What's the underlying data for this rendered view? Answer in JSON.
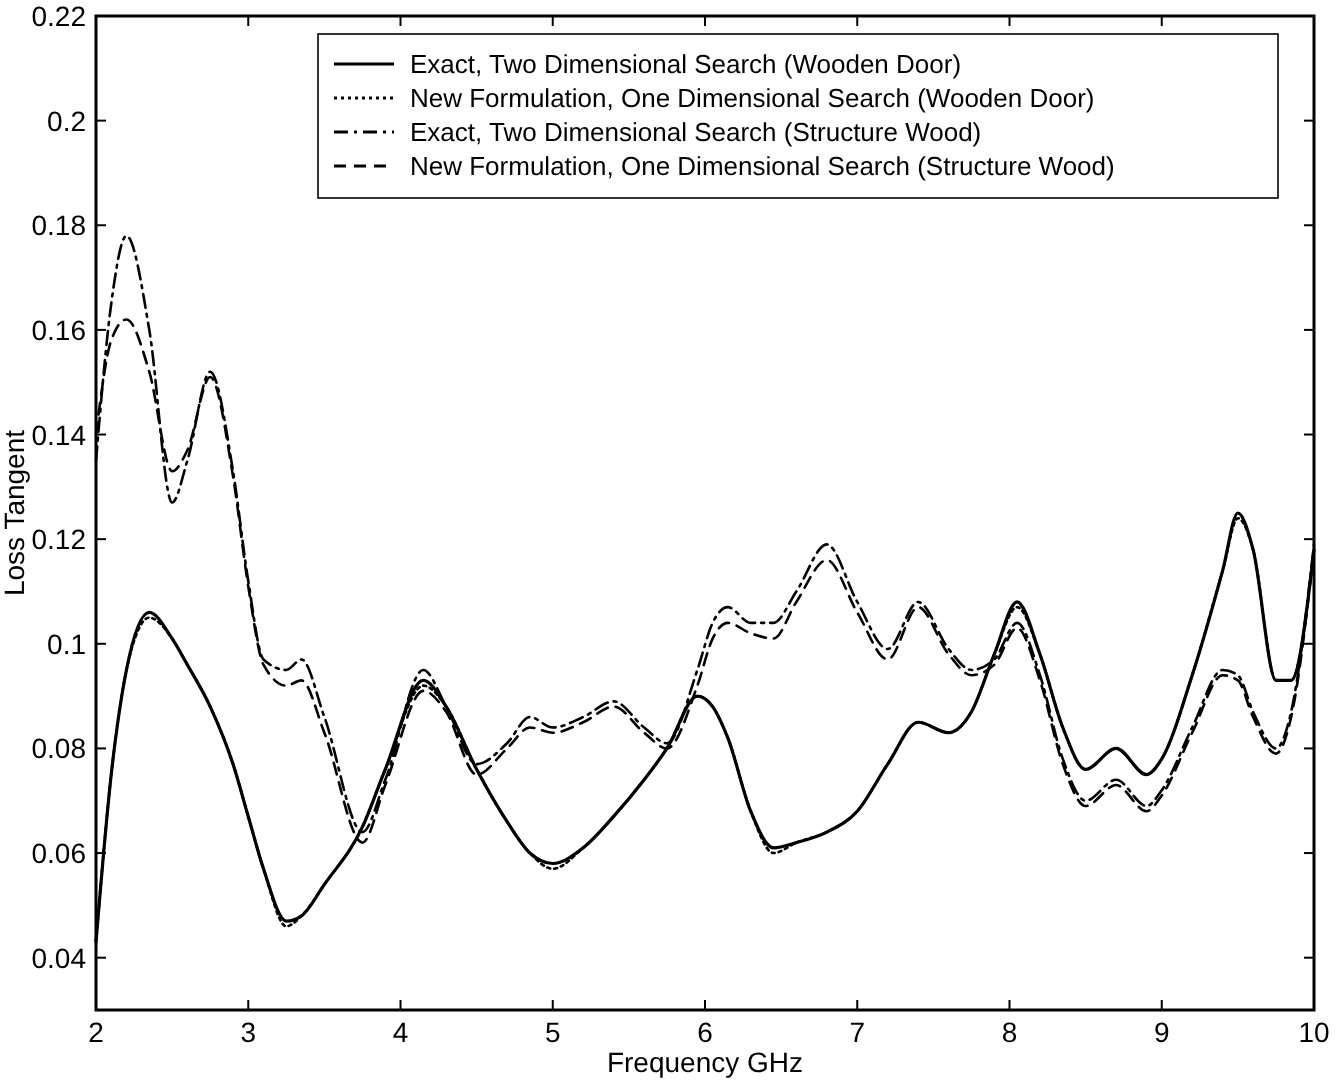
{
  "chart_data": {
    "type": "line",
    "xlabel": "Frequency GHz",
    "ylabel": "Loss Tangent",
    "x": [
      2,
      2.1,
      2.2,
      2.35,
      2.5,
      2.6,
      2.75,
      2.9,
      3.0,
      3.1,
      3.25,
      3.35,
      3.5,
      3.75,
      3.9,
      4.15,
      4.3,
      4.5,
      4.7,
      4.85,
      5.0,
      5.2,
      5.4,
      5.6,
      5.75,
      5.95,
      6.05,
      6.15,
      6.3,
      6.45,
      6.6,
      6.8,
      7.0,
      7.2,
      7.4,
      7.6,
      7.75,
      7.9,
      8.05,
      8.2,
      8.35,
      8.5,
      8.7,
      8.9,
      9.0,
      9.2,
      9.4,
      9.5,
      9.6,
      9.75,
      9.85,
      10
    ],
    "series": [
      {
        "name": "Exact, Two Dimensional Search (Wooden Door)",
        "color": "#000000",
        "line_style": "solid",
        "values": [
          0.043,
          0.075,
          0.095,
          0.106,
          0.101,
          0.096,
          0.088,
          0.077,
          0.067,
          0.057,
          0.047,
          0.048,
          0.054,
          0.065,
          0.076,
          0.093,
          0.088,
          0.076,
          0.066,
          0.06,
          0.058,
          0.061,
          0.067,
          0.074,
          0.08,
          0.09,
          0.088,
          0.082,
          0.068,
          0.061,
          0.062,
          0.064,
          0.068,
          0.077,
          0.085,
          0.083,
          0.087,
          0.098,
          0.108,
          0.098,
          0.084,
          0.076,
          0.08,
          0.075,
          0.078,
          0.094,
          0.114,
          0.125,
          0.118,
          0.093,
          0.093,
          0.118
        ]
      },
      {
        "name": "New Formulation, One Dimensional Search (Wooden Door)",
        "color": "#000000",
        "line_style": "dotted",
        "values": [
          0.043,
          0.075,
          0.095,
          0.105,
          0.101,
          0.096,
          0.088,
          0.077,
          0.067,
          0.057,
          0.046,
          0.048,
          0.054,
          0.065,
          0.076,
          0.092,
          0.088,
          0.076,
          0.066,
          0.06,
          0.057,
          0.061,
          0.067,
          0.074,
          0.08,
          0.09,
          0.088,
          0.082,
          0.068,
          0.06,
          0.062,
          0.064,
          0.068,
          0.077,
          0.085,
          0.083,
          0.087,
          0.098,
          0.107,
          0.098,
          0.084,
          0.076,
          0.08,
          0.075,
          0.078,
          0.094,
          0.114,
          0.124,
          0.118,
          0.093,
          0.093,
          0.118
        ]
      },
      {
        "name": "Exact, Two Dimensional Search (Structure Wood)",
        "color": "#000000",
        "line_style": "dashdot",
        "values": [
          0.135,
          0.165,
          0.178,
          0.16,
          0.127,
          0.135,
          0.152,
          0.133,
          0.112,
          0.097,
          0.095,
          0.097,
          0.086,
          0.064,
          0.074,
          0.095,
          0.088,
          0.077,
          0.081,
          0.086,
          0.084,
          0.086,
          0.089,
          0.084,
          0.081,
          0.095,
          0.104,
          0.107,
          0.104,
          0.104,
          0.11,
          0.119,
          0.108,
          0.099,
          0.108,
          0.099,
          0.095,
          0.097,
          0.104,
          0.094,
          0.078,
          0.07,
          0.074,
          0.069,
          0.072,
          0.084,
          0.095,
          0.094,
          0.087,
          0.08,
          0.087,
          0.119
        ]
      },
      {
        "name": "New Formulation, One Dimensional Search (Structure Wood)",
        "color": "#000000",
        "line_style": "dashed",
        "values": [
          0.14,
          0.158,
          0.162,
          0.152,
          0.133,
          0.137,
          0.151,
          0.132,
          0.111,
          0.096,
          0.092,
          0.093,
          0.083,
          0.062,
          0.073,
          0.091,
          0.087,
          0.075,
          0.08,
          0.084,
          0.083,
          0.085,
          0.088,
          0.083,
          0.08,
          0.092,
          0.101,
          0.104,
          0.102,
          0.101,
          0.108,
          0.116,
          0.106,
          0.097,
          0.107,
          0.098,
          0.094,
          0.096,
          0.103,
          0.093,
          0.077,
          0.069,
          0.073,
          0.068,
          0.071,
          0.083,
          0.094,
          0.093,
          0.086,
          0.079,
          0.086,
          0.118
        ]
      }
    ],
    "xlim": [
      2,
      10
    ],
    "xticks": [
      2,
      3,
      4,
      5,
      6,
      7,
      8,
      9,
      10
    ],
    "ylim": [
      0.03,
      0.22
    ],
    "yticks": [
      0.04,
      0.06,
      0.08,
      0.1,
      0.12,
      0.14,
      0.16,
      0.18,
      0.2,
      0.22
    ],
    "legend": "top right",
    "grid": false
  }
}
